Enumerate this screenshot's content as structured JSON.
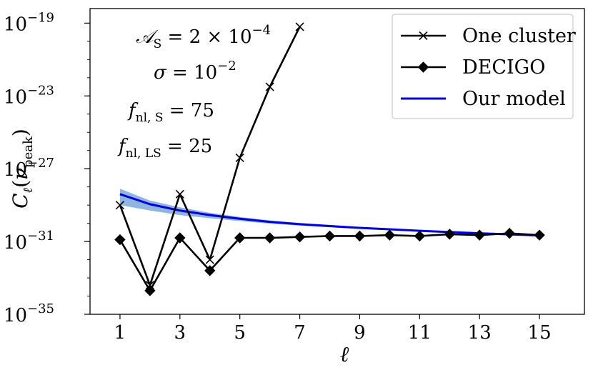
{
  "chart_data": {
    "type": "line",
    "xlabel": "ℓ",
    "ylabel": "C_ℓ(ν_peak)",
    "xlim": [
      0.0,
      16.5
    ],
    "ylim_log10": [
      -35,
      -18.2
    ],
    "yscale": "log",
    "x_ticks": [
      1,
      3,
      5,
      7,
      9,
      11,
      13,
      15
    ],
    "y_ticks": [
      {
        "exp": -35,
        "base": "10",
        "sup": "−35"
      },
      {
        "exp": -31,
        "base": "10",
        "sup": "−31"
      },
      {
        "exp": -27,
        "base": "10",
        "sup": "−27"
      },
      {
        "exp": -23,
        "base": "10",
        "sup": "−23"
      },
      {
        "exp": -19,
        "base": "10",
        "sup": "−19"
      }
    ],
    "legend_position": "top-right",
    "grid": false,
    "series": [
      {
        "name": "One cluster",
        "color": "#000000",
        "marker": "x",
        "x": [
          1,
          2,
          3,
          4,
          5,
          6,
          7
        ],
        "log10_y": [
          -29.0,
          -33.4,
          -28.4,
          -32.0,
          -26.4,
          -22.5,
          -19.2
        ]
      },
      {
        "name": "DECIGO",
        "color": "#000000",
        "marker": "diamond",
        "x": [
          1,
          2,
          3,
          4,
          5,
          6,
          7,
          8,
          9,
          10,
          11,
          12,
          13,
          14,
          15
        ],
        "log10_y": [
          -30.9,
          -33.7,
          -30.8,
          -32.6,
          -30.8,
          -30.8,
          -30.75,
          -30.7,
          -30.7,
          -30.65,
          -30.7,
          -30.6,
          -30.65,
          -30.55,
          -30.65
        ]
      },
      {
        "name": "Our model",
        "color": "#0000dd",
        "band_color": "#7aa9dc",
        "x": [
          1,
          2,
          3,
          4,
          5,
          6,
          7,
          8,
          9,
          10,
          11,
          12,
          13,
          14,
          15
        ],
        "log10_y": [
          -28.4,
          -28.95,
          -29.3,
          -29.55,
          -29.75,
          -29.92,
          -30.05,
          -30.15,
          -30.25,
          -30.33,
          -30.41,
          -30.48,
          -30.55,
          -30.61,
          -30.67
        ],
        "band_upper_log10": [
          -28.1,
          -28.75,
          -29.12,
          -29.42,
          -29.65,
          -29.84,
          -29.98,
          -30.09,
          -30.2,
          -30.28,
          -30.37,
          -30.44,
          -30.52,
          -30.58,
          -30.64
        ],
        "band_lower_log10": [
          -29.0,
          -29.3,
          -29.55,
          -29.72,
          -29.88,
          -30.02,
          -30.13,
          -30.22,
          -30.31,
          -30.38,
          -30.45,
          -30.52,
          -30.58,
          -30.64,
          -30.7
        ]
      }
    ],
    "annotations": [
      {
        "main": "𝒜",
        "sub": "S",
        "rest": " = 2 × 10",
        "sup": "−4"
      },
      {
        "main": "σ",
        "sub": "",
        "rest": " = 10",
        "sup": "−2"
      },
      {
        "main": "f",
        "sub": "nl, S",
        "rest": " = 75",
        "sup": ""
      },
      {
        "main": "f",
        "sub": "nl, LS",
        "rest": " = 25",
        "sup": ""
      }
    ]
  }
}
